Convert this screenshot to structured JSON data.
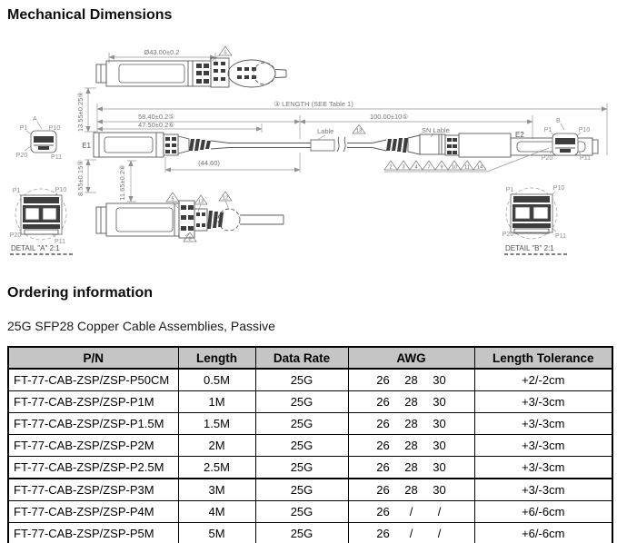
{
  "page": {
    "section1_title": "Mechanical Dimensions",
    "section2_title": "Ordering information",
    "subtitle": "25G SFP28 Copper Cable Assemblies, Passive"
  },
  "drawing": {
    "dims": {
      "d43": "Ø43.00±0.2",
      "length_note": "③ LENGTH (SEE Table 1)",
      "d58": "58.40±0.2⑤",
      "d47": "47.50±0.2⑥",
      "d100": "100.00±10⑤",
      "d13": "13.55±0.25⑨",
      "d8": "8.55±0.15⑨",
      "d11": "11.65±0.2⑧",
      "d44": "(44.60)"
    },
    "labels": {
      "e1": "E1",
      "e2": "E2",
      "a": "A",
      "b": "B",
      "p1": "P1",
      "p10": "P10",
      "p20": "P20",
      "p11": "P11",
      "cable_label": "Lable",
      "sn_label": "SN Lable",
      "detail_a": "DETAIL \"A\" 2:1",
      "detail_b": "DETAIL \"B\" 2:1"
    },
    "callouts": {
      "c5": "5",
      "c13": "13",
      "c12": "12",
      "c8": "8",
      "label_flag": "13",
      "row": [
        "2",
        "3",
        "4",
        "7",
        "9",
        "10",
        "11",
        "14"
      ]
    }
  },
  "table": {
    "headers": [
      "P/N",
      "Length",
      "Data Rate",
      "AWG",
      "Length Tolerance"
    ],
    "rows": [
      {
        "pn": "FT-77-CAB-ZSP/ZSP-P50CM",
        "length": "0.5M",
        "data_rate": "25G",
        "awg": [
          "26",
          "28",
          "30"
        ],
        "tolerance": "+2/-2cm"
      },
      {
        "pn": "FT-77-CAB-ZSP/ZSP-P1M",
        "length": "1M",
        "data_rate": "25G",
        "awg": [
          "26",
          "28",
          "30"
        ],
        "tolerance": "+3/-3cm"
      },
      {
        "pn": "FT-77-CAB-ZSP/ZSP-P1.5M",
        "length": "1.5M",
        "data_rate": "25G",
        "awg": [
          "26",
          "28",
          "30"
        ],
        "tolerance": "+3/-3cm"
      },
      {
        "pn": "FT-77-CAB-ZSP/ZSP-P2M",
        "length": "2M",
        "data_rate": "25G",
        "awg": [
          "26",
          "28",
          "30"
        ],
        "tolerance": "+3/-3cm"
      },
      {
        "pn": "FT-77-CAB-ZSP/ZSP-P2.5M",
        "length": "2.5M",
        "data_rate": "25G",
        "awg": [
          "26",
          "28",
          "30"
        ],
        "tolerance": "+3/-3cm"
      },
      {
        "pn": "FT-77-CAB-ZSP/ZSP-P3M",
        "length": "3M",
        "data_rate": "25G",
        "awg": [
          "26",
          "28",
          "30"
        ],
        "tolerance": "+3/-3cm"
      },
      {
        "pn": "FT-77-CAB-ZSP/ZSP-P4M",
        "length": "4M",
        "data_rate": "25G",
        "awg": [
          "26",
          "/",
          "/"
        ],
        "tolerance": "+6/-6cm"
      },
      {
        "pn": "FT-77-CAB-ZSP/ZSP-P5M",
        "length": "5M",
        "data_rate": "25G",
        "awg": [
          "26",
          "/",
          "/"
        ],
        "tolerance": "+6/-6cm"
      }
    ]
  }
}
